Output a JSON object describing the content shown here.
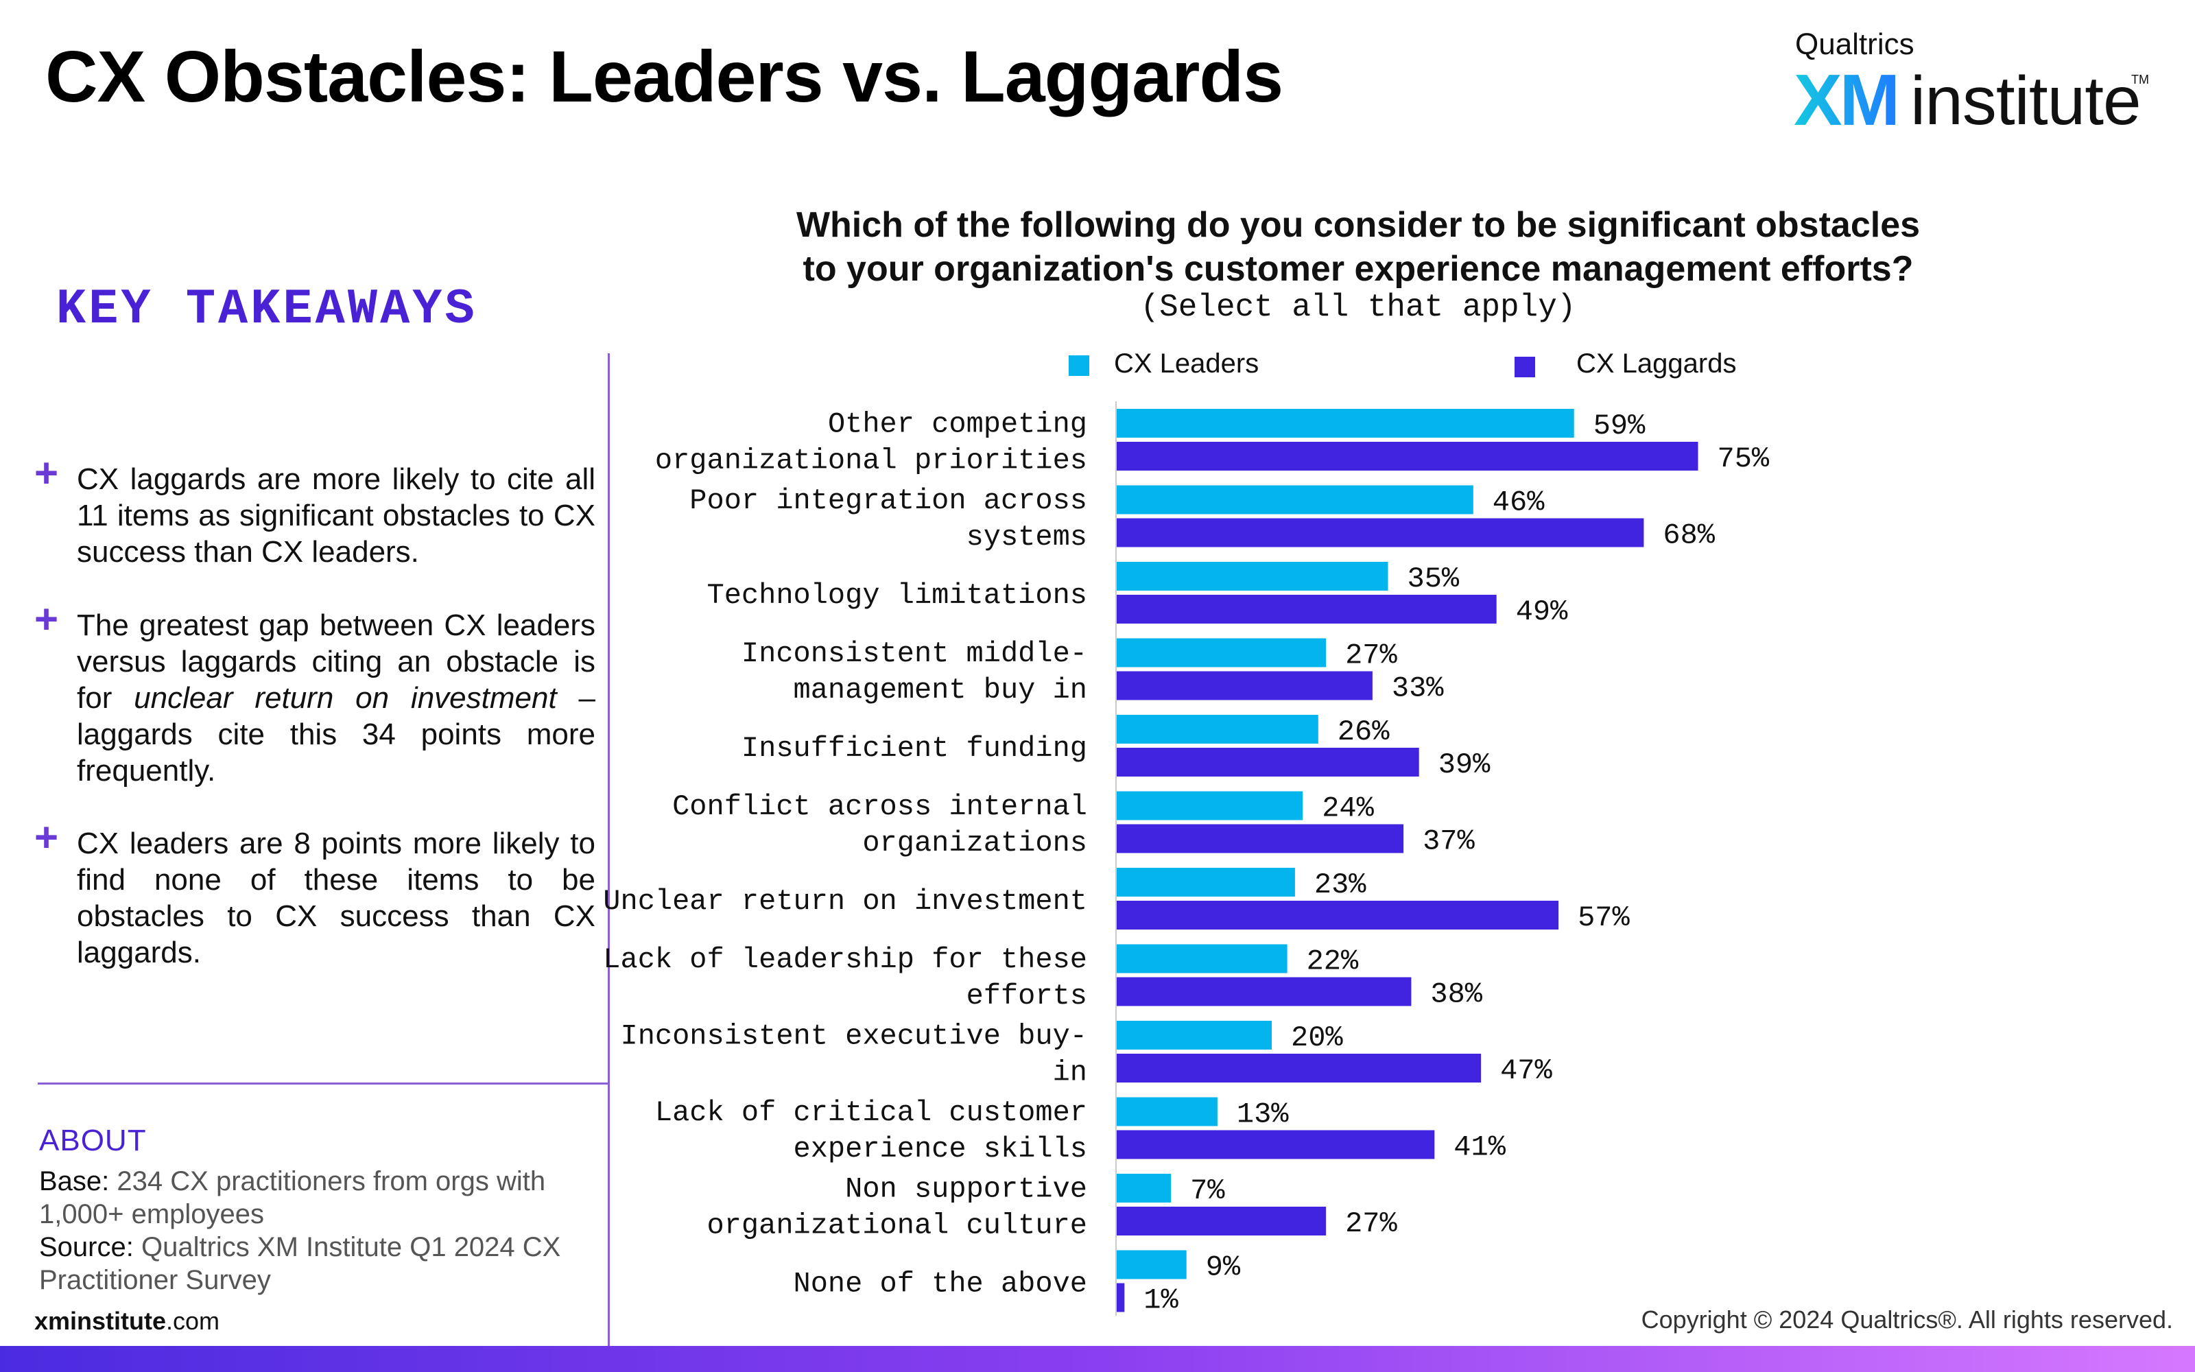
{
  "header": {
    "title": "CX Obstacles: Leaders vs. Laggards",
    "logo_top": "Qualtrics",
    "logo_xm": "XM",
    "logo_institute": "institute",
    "logo_tm": "TM"
  },
  "sidebar": {
    "takeaways_title": "KEY TAKEAWAYS",
    "takeaways": [
      "CX laggards are more likely to cite all 11 items as significant obstacles to CX success than CX leaders.",
      "The greatest gap between CX leaders versus laggards citing an obstacle is for unclear return on investment – laggards cite this 34 points more frequently.",
      "CX leaders are 8 points more likely to find none of these items to be obstacles to CX success than CX laggards."
    ],
    "about_title": "ABOUT",
    "base_label": "Base:",
    "base_text": "234 CX practitioners from orgs with 1,000+ employees",
    "source_label": "Source:",
    "source_text": "Qualtrics XM Institute Q1 2024 CX Practitioner Survey",
    "site_bold": "xminstitute",
    "site_rest": ".com"
  },
  "footer": {
    "copyright": "Copyright © 2024 Qualtrics®. All rights reserved."
  },
  "colors": {
    "leaders": "#04b4ec",
    "laggards": "#4124df",
    "accent": "#4a22d6"
  },
  "chart_data": {
    "type": "bar",
    "orientation": "horizontal",
    "title_line1": "Which of the following do you consider to be significant obstacles",
    "title_line2": "to your organization's customer experience management efforts?",
    "subtitle": "(Select all that apply)",
    "legend_position": "top",
    "categories": [
      [
        "Other competing",
        "organizational priorities"
      ],
      [
        "Poor integration across",
        "systems"
      ],
      [
        "Technology limitations"
      ],
      [
        "Inconsistent middle-",
        "management buy in"
      ],
      [
        "Insufficient funding"
      ],
      [
        "Conflict across internal",
        "organizations"
      ],
      [
        "Unclear return on investment"
      ],
      [
        "Lack of leadership for these",
        "efforts"
      ],
      [
        "Inconsistent executive buy-",
        "in"
      ],
      [
        "Lack of critical customer",
        "experience skills"
      ],
      [
        "Non supportive",
        "organizational culture"
      ],
      [
        "None of the above"
      ]
    ],
    "series": [
      {
        "name": "CX Leaders",
        "values": [
          59,
          46,
          35,
          27,
          26,
          24,
          23,
          22,
          20,
          13,
          7,
          9
        ]
      },
      {
        "name": "CX Laggards",
        "values": [
          75,
          68,
          49,
          33,
          39,
          37,
          57,
          38,
          47,
          41,
          27,
          1
        ]
      }
    ],
    "value_suffix": "%",
    "xlim": [
      0,
      100
    ]
  }
}
